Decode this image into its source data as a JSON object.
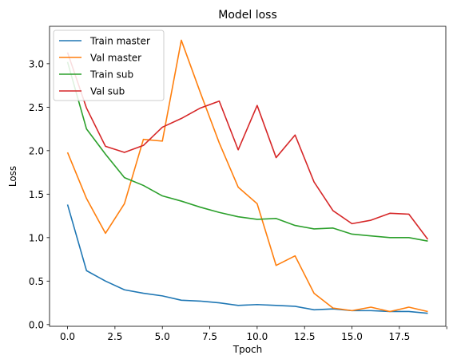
{
  "chart_data": {
    "type": "line",
    "title": "Model loss",
    "xlabel": "Tpoch",
    "ylabel": "Loss",
    "xlim": [
      -0.95,
      19.95
    ],
    "ylim": [
      -0.02,
      3.43
    ],
    "xticks": [
      0,
      2.5,
      5,
      7.5,
      10,
      12.5,
      15,
      17.5,
      20
    ],
    "xtick_labels": [
      "0.0",
      "2.5",
      "5.0",
      "7.5",
      "10.0",
      "12.5",
      "15.0",
      "17.5",
      ""
    ],
    "yticks": [
      0,
      0.5,
      1,
      1.5,
      2,
      2.5,
      3
    ],
    "ytick_labels": [
      "0.0",
      "0.5",
      "1.0",
      "1.5",
      "2.0",
      "2.5",
      "3.0"
    ],
    "grid": false,
    "legend_position": "top-left",
    "x": [
      0,
      1,
      2,
      3,
      4,
      5,
      6,
      7,
      8,
      9,
      10,
      11,
      12,
      13,
      14,
      15,
      16,
      17,
      18,
      19
    ],
    "series": [
      {
        "name": "Train master",
        "color": "#1f77b4",
        "values": [
          1.38,
          0.62,
          0.5,
          0.4,
          0.36,
          0.33,
          0.28,
          0.27,
          0.25,
          0.22,
          0.23,
          0.22,
          0.21,
          0.17,
          0.18,
          0.16,
          0.16,
          0.15,
          0.15,
          0.13
        ]
      },
      {
        "name": "Val master",
        "color": "#ff7f0e",
        "values": [
          1.98,
          1.45,
          1.05,
          1.39,
          2.13,
          2.11,
          3.27,
          2.67,
          2.09,
          1.58,
          1.39,
          0.68,
          0.79,
          0.36,
          0.19,
          0.16,
          0.2,
          0.15,
          0.2,
          0.15
        ]
      },
      {
        "name": "Train sub",
        "color": "#2ca02c",
        "values": [
          3.02,
          2.25,
          1.96,
          1.69,
          1.6,
          1.48,
          1.42,
          1.35,
          1.29,
          1.24,
          1.21,
          1.22,
          1.14,
          1.1,
          1.11,
          1.04,
          1.02,
          1.0,
          1.0,
          0.96
        ]
      },
      {
        "name": "Val sub",
        "color": "#d62728",
        "values": [
          3.13,
          2.49,
          2.05,
          1.98,
          2.06,
          2.27,
          2.37,
          2.49,
          2.57,
          2.01,
          2.52,
          1.92,
          2.18,
          1.64,
          1.31,
          1.16,
          1.2,
          1.28,
          1.27,
          0.98
        ]
      }
    ]
  }
}
